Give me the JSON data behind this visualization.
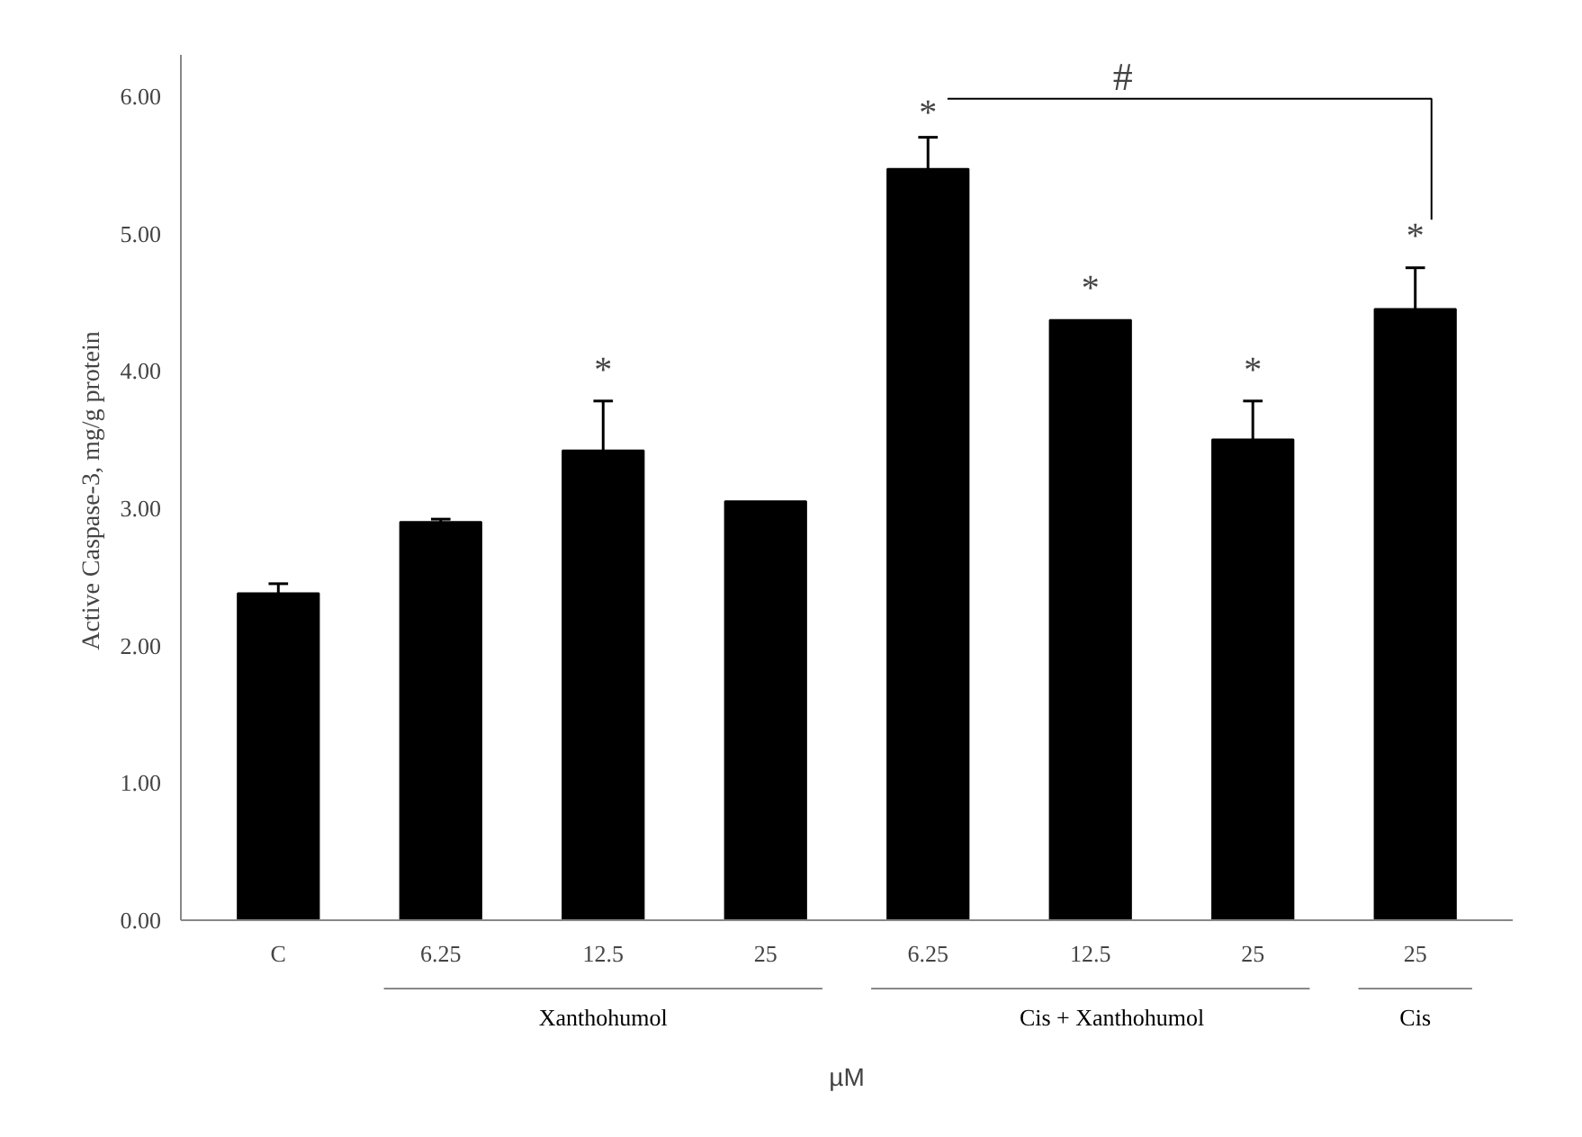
{
  "chart_data": {
    "type": "bar",
    "ylabel": "Active Caspase-3,  mg/g protein",
    "xlabel": "µM",
    "categories": [
      "C",
      "6.25",
      "12.5",
      "25",
      "6.25",
      "12.5",
      "25",
      "25"
    ],
    "values": [
      2.38,
      2.9,
      3.42,
      3.05,
      5.47,
      4.37,
      3.5,
      4.45
    ],
    "color": "#000000",
    "errors": [
      [
        2.38,
        2.45
      ],
      [
        2.9,
        2.92
      ],
      [
        3.42,
        3.78
      ],
      null,
      [
        5.47,
        5.7
      ],
      null,
      [
        3.5,
        3.78
      ],
      [
        4.45,
        4.75
      ]
    ],
    "ylim": [
      0,
      6.3
    ],
    "yticks": [
      {
        "value": 0,
        "label": "0.00"
      },
      {
        "value": 1,
        "label": "1.00"
      },
      {
        "value": 2,
        "label": "2.00"
      },
      {
        "value": 3,
        "label": "3.00"
      },
      {
        "value": 4,
        "label": "4.00"
      },
      {
        "value": 5,
        "label": "5.00"
      },
      {
        "value": 6,
        "label": "6.00"
      }
    ],
    "grid": false,
    "annotations": [
      "*",
      "*",
      "*",
      "*",
      "*",
      "#",
      "Xanthohumol",
      "Cis  + Xanthohumol",
      "Cis"
    ]
  }
}
